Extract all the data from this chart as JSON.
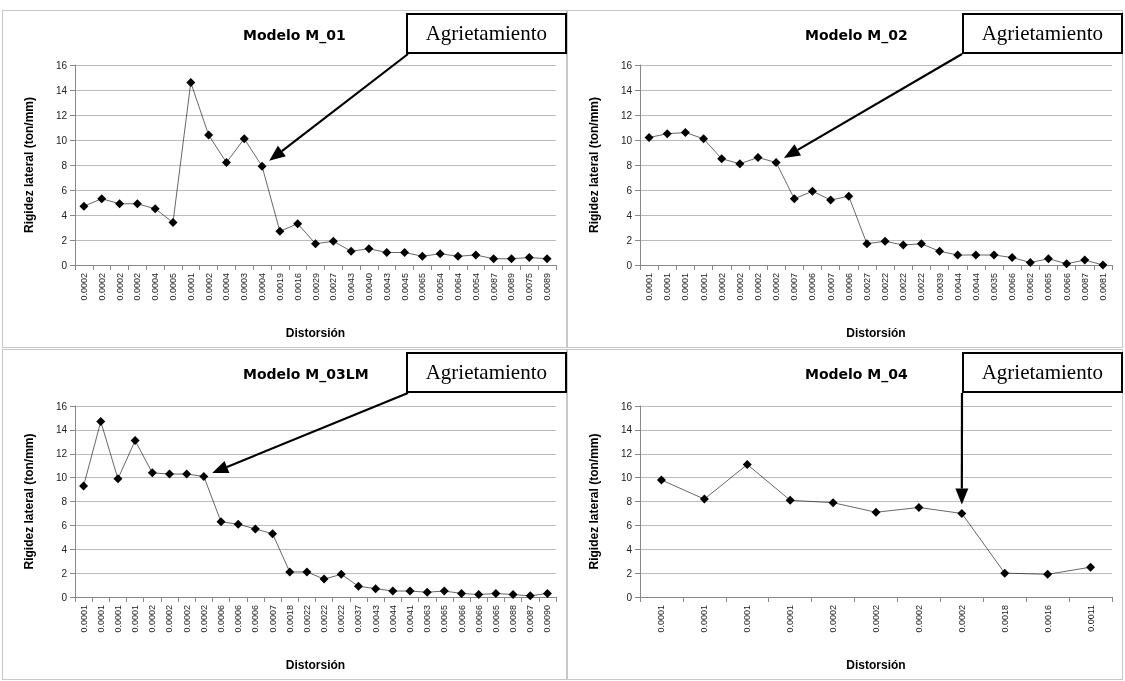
{
  "chart_data": [
    {
      "type": "line",
      "title": "Modelo M_01",
      "xlabel": "Distorsión",
      "ylabel": "Rigidez lateral (ton/mm)",
      "color": "#000000",
      "marker": "diamond",
      "grid": "y",
      "ylim": [
        0,
        16
      ],
      "yticks": [
        0,
        2,
        4,
        6,
        8,
        10,
        12,
        14,
        16
      ],
      "categories": [
        "0.0002",
        "0.0002",
        "0.0002",
        "0.0002",
        "0.0004",
        "0.0005",
        "0.0001",
        "0.0002",
        "0.0004",
        "0.0003",
        "0.0004",
        "0.0019",
        "0.0016",
        "0.0029",
        "0.0027",
        "0.0043",
        "0.0040",
        "0.0043",
        "0.0045",
        "0.0065",
        "0.0054",
        "0.0064",
        "0.0054",
        "0.0087",
        "0.0089",
        "0.0075",
        "0.0089"
      ],
      "values": [
        4.7,
        5.3,
        4.9,
        4.9,
        4.5,
        3.4,
        14.6,
        10.4,
        8.2,
        10.1,
        7.9,
        2.7,
        3.3,
        1.7,
        1.9,
        1.1,
        1.3,
        1.0,
        1.0,
        0.7,
        0.9,
        0.7,
        0.8,
        0.5,
        0.5,
        0.6,
        0.5
      ],
      "annotations": [
        "Agrietamiento"
      ]
    },
    {
      "type": "line",
      "title": "Modelo M_02",
      "xlabel": "Distorsión",
      "ylabel": "Rigidez lateral (ton/mm)",
      "color": "#000000",
      "marker": "diamond",
      "grid": "y",
      "ylim": [
        0,
        16
      ],
      "yticks": [
        0,
        2,
        4,
        6,
        8,
        10,
        12,
        14,
        16
      ],
      "categories": [
        "0.0001",
        "0.0001",
        "0.0001",
        "0.0001",
        "0.0002",
        "0.0002",
        "0.0002",
        "0.0002",
        "0.0007",
        "0.0006",
        "0.0007",
        "0.0006",
        "0.0027",
        "0.0022",
        "0.0022",
        "0.0022",
        "0.0039",
        "0.0044",
        "0.0044",
        "0.0035",
        "0.0066",
        "0.0062",
        "0.0065",
        "0.0066",
        "0.0087",
        "0.0081"
      ],
      "values": [
        10.2,
        10.5,
        10.6,
        10.1,
        8.5,
        8.1,
        8.6,
        8.2,
        5.3,
        5.9,
        5.2,
        5.5,
        1.7,
        1.9,
        1.6,
        1.7,
        1.1,
        0.8,
        0.8,
        0.8,
        0.6,
        0.2,
        0.5,
        0.1,
        0.4,
        0.0
      ],
      "annotations": [
        "Agrietamiento"
      ]
    },
    {
      "type": "line",
      "title": "Modelo M_03LM",
      "xlabel": "Distorsión",
      "ylabel": "Rigidez lateral (ton/mm)",
      "color": "#000000",
      "marker": "diamond",
      "grid": "y",
      "ylim": [
        0,
        16
      ],
      "yticks": [
        0,
        2,
        4,
        6,
        8,
        10,
        12,
        14,
        16
      ],
      "categories": [
        "0.0001",
        "0.0001",
        "0.0001",
        "0.0001",
        "0.0002",
        "0.0002",
        "0.0002",
        "0.0002",
        "0.0006",
        "0.0006",
        "0.0006",
        "0.0007",
        "0.0018",
        "0.0022",
        "0.0022",
        "0.0022",
        "0.0037",
        "0.0043",
        "0.0044",
        "0.0041",
        "0.0063",
        "0.0065",
        "0.0066",
        "0.0066",
        "0.0065",
        "0.0088",
        "0.0087",
        "0.0090"
      ],
      "values": [
        9.3,
        14.7,
        9.9,
        13.1,
        10.4,
        10.3,
        10.3,
        10.1,
        6.3,
        6.1,
        5.7,
        5.3,
        2.1,
        2.1,
        1.5,
        1.9,
        0.9,
        0.7,
        0.5,
        0.5,
        0.4,
        0.5,
        0.3,
        0.2,
        0.3,
        0.2,
        0.1,
        0.3
      ],
      "annotations": [
        "Agrietamiento"
      ]
    },
    {
      "type": "line",
      "title": "Modelo M_04",
      "xlabel": "Distorsión",
      "ylabel": "Rigidez lateral (ton/mm)",
      "color": "#000000",
      "marker": "diamond",
      "grid": "y",
      "ylim": [
        0,
        16
      ],
      "yticks": [
        0,
        2,
        4,
        6,
        8,
        10,
        12,
        14,
        16
      ],
      "categories": [
        "0.0001",
        "0.0001",
        "0.0001",
        "0.0001",
        "0.0002",
        "0.0002",
        "0.0002",
        "0.0002",
        "0.0018",
        "0.0016",
        "0.0011"
      ],
      "values": [
        9.8,
        8.2,
        11.1,
        8.1,
        7.9,
        7.1,
        7.5,
        7.0,
        2.0,
        1.9,
        2.5
      ],
      "annotations": [
        "Agrietamiento"
      ]
    }
  ]
}
